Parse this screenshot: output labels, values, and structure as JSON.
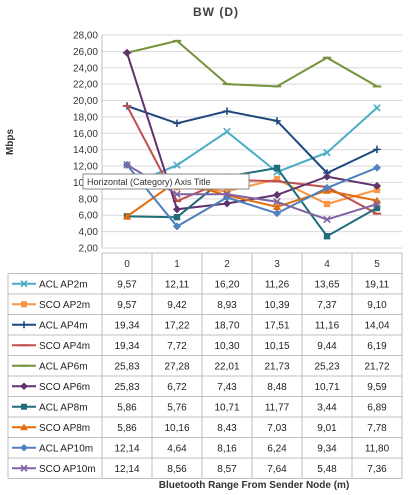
{
  "chart_data": {
    "type": "line",
    "title": "BW (D)",
    "ylabel": "Mbps",
    "xlabel": "Bluetooth Range From Sender Node (m)",
    "categories": [
      "0",
      "1",
      "2",
      "3",
      "4",
      "5"
    ],
    "ylim": [
      2.0,
      28.0
    ],
    "yticks": [
      "2,00",
      "4,00",
      "6,00",
      "8,00",
      "10,00",
      "12,00",
      "14,00",
      "16,00",
      "18,00",
      "20,00",
      "22,00",
      "24,00",
      "26,00",
      "28,00"
    ],
    "grid": true,
    "tooltip": "Horizontal (Category) Axis Title",
    "series": [
      {
        "name": "ACL AP2m",
        "color": "#4bacc6",
        "marker": "x",
        "values": [
          9.57,
          12.11,
          16.2,
          11.26,
          13.65,
          19.11
        ],
        "labels": [
          "9,57",
          "12,11",
          "16,20",
          "11,26",
          "13,65",
          "19,11"
        ]
      },
      {
        "name": "SCO AP2m",
        "color": "#f79646",
        "marker": "square",
        "values": [
          9.57,
          9.42,
          8.93,
          10.39,
          7.37,
          9.1
        ],
        "labels": [
          "9,57",
          "9,42",
          "8,93",
          "10,39",
          "7,37",
          "9,10"
        ]
      },
      {
        "name": "ACL AP4m",
        "color": "#1f497d",
        "marker": "plus",
        "values": [
          19.34,
          17.22,
          18.7,
          17.51,
          11.16,
          14.04
        ],
        "labels": [
          "19,34",
          "17,22",
          "18,70",
          "17,51",
          "11,16",
          "14,04"
        ]
      },
      {
        "name": "SCO AP4m",
        "color": "#c0504d",
        "marker": "dash",
        "values": [
          19.34,
          7.72,
          10.3,
          10.15,
          9.44,
          6.19
        ],
        "labels": [
          "19,34",
          "7,72",
          "10,30",
          "10,15",
          "9,44",
          "6,19"
        ]
      },
      {
        "name": "ACL AP6m",
        "color": "#77933c",
        "marker": "dash",
        "values": [
          25.83,
          27.28,
          22.01,
          21.73,
          25.23,
          21.72
        ],
        "labels": [
          "25,83",
          "27,28",
          "22,01",
          "21,73",
          "25,23",
          "21,72"
        ]
      },
      {
        "name": "SCO AP6m",
        "color": "#60326e",
        "marker": "diamond",
        "values": [
          25.83,
          6.72,
          7.43,
          8.48,
          10.71,
          9.59
        ],
        "labels": [
          "25,83",
          "6,72",
          "7,43",
          "8,48",
          "10,71",
          "9,59"
        ]
      },
      {
        "name": "ACL AP8m",
        "color": "#1f6e7a",
        "marker": "square",
        "values": [
          5.86,
          5.76,
          10.71,
          11.77,
          3.44,
          6.89
        ],
        "labels": [
          "5,86",
          "5,76",
          "10,71",
          "11,77",
          "3,44",
          "6,89"
        ]
      },
      {
        "name": "SCO AP8m",
        "color": "#e36c09",
        "marker": "triangle",
        "values": [
          5.86,
          10.16,
          8.43,
          7.03,
          9.01,
          7.78
        ],
        "labels": [
          "5,86",
          "10,16",
          "8,43",
          "7,03",
          "9,01",
          "7,78"
        ]
      },
      {
        "name": "ACL AP10m",
        "color": "#4f81bd",
        "marker": "diamond",
        "values": [
          12.14,
          4.64,
          8.16,
          6.24,
          9.34,
          11.8
        ],
        "labels": [
          "12,14",
          "4,64",
          "8,16",
          "6,24",
          "9,34",
          "11,80"
        ]
      },
      {
        "name": "SCO AP10m",
        "color": "#8064a2",
        "marker": "x",
        "values": [
          12.14,
          8.56,
          8.57,
          7.64,
          5.48,
          7.36
        ],
        "labels": [
          "12,14",
          "8,56",
          "8,57",
          "7,64",
          "5,48",
          "7,36"
        ]
      }
    ]
  }
}
